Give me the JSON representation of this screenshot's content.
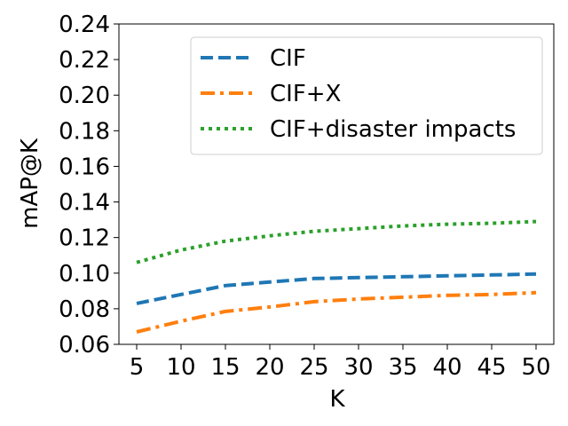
{
  "chart_data": {
    "type": "line",
    "title": "",
    "xlabel": "K",
    "ylabel": "mAP@K",
    "x": [
      5,
      10,
      15,
      20,
      25,
      30,
      35,
      40,
      45,
      50
    ],
    "x_ticks": [
      "5",
      "10",
      "15",
      "20",
      "25",
      "30",
      "35",
      "40",
      "45",
      "50"
    ],
    "xlim": [
      3,
      52
    ],
    "ylim": [
      0.06,
      0.24
    ],
    "y_ticks": [
      0.06,
      0.08,
      0.1,
      0.12,
      0.14,
      0.16,
      0.18,
      0.2,
      0.22,
      0.24
    ],
    "y_tick_labels": [
      "0.06",
      "0.08",
      "0.10",
      "0.12",
      "0.14",
      "0.16",
      "0.18",
      "0.20",
      "0.22",
      "0.24"
    ],
    "grid": false,
    "legend_position": "top-right",
    "series": [
      {
        "name": "CIF",
        "style": "dashed",
        "color": "#1f77b4",
        "values": [
          0.083,
          0.088,
          0.093,
          0.095,
          0.097,
          0.0975,
          0.098,
          0.0985,
          0.099,
          0.0995
        ]
      },
      {
        "name": "CIF+X",
        "style": "dashdot",
        "color": "#ff7f0e",
        "values": [
          0.067,
          0.073,
          0.0785,
          0.081,
          0.084,
          0.0855,
          0.0865,
          0.0875,
          0.088,
          0.089
        ]
      },
      {
        "name": "CIF+disaster impacts",
        "style": "dotted",
        "color": "#2ca02c",
        "values": [
          0.106,
          0.113,
          0.118,
          0.121,
          0.1235,
          0.125,
          0.1265,
          0.1275,
          0.128,
          0.129
        ]
      }
    ]
  }
}
